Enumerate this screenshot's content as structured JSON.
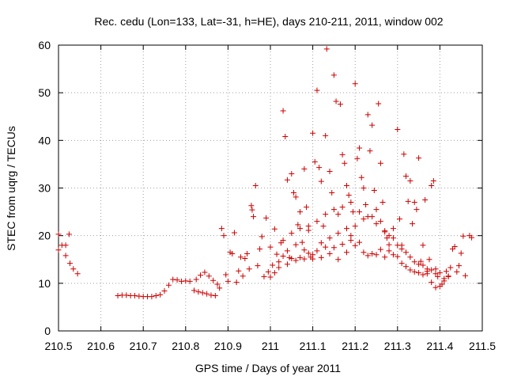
{
  "chart_data": {
    "type": "scatter",
    "title": "Rec. cedu (Lon=133, Lat=-31, h=HE), days 210-211, 2011, window 002",
    "xlabel": "GPS time / Days of year 2011",
    "ylabel": "STEC from uqrg / TECUs",
    "xlim": [
      210.5,
      211.5
    ],
    "ylim": [
      0,
      60
    ],
    "x_ticks": [
      "210.5",
      "210.6",
      "210.7",
      "210.8",
      "210.9",
      "211",
      "211.1",
      "211.2",
      "211.3",
      "211.4",
      "211.5"
    ],
    "y_ticks": [
      "0",
      "10",
      "20",
      "30",
      "40",
      "50",
      "60"
    ],
    "marker": "+",
    "color": "#cc0000",
    "points": [
      [
        210.5,
        20.3
      ],
      [
        210.5,
        17.0
      ],
      [
        210.508,
        18.0
      ],
      [
        210.517,
        18.0
      ],
      [
        210.517,
        15.8
      ],
      [
        210.525,
        20.3
      ],
      [
        210.527,
        14.2
      ],
      [
        210.535,
        13.0
      ],
      [
        210.545,
        12.0
      ],
      [
        210.64,
        7.4
      ],
      [
        210.65,
        7.5
      ],
      [
        210.66,
        7.5
      ],
      [
        210.67,
        7.4
      ],
      [
        210.68,
        7.4
      ],
      [
        210.69,
        7.3
      ],
      [
        210.7,
        7.2
      ],
      [
        210.71,
        7.2
      ],
      [
        210.72,
        7.2
      ],
      [
        210.73,
        7.4
      ],
      [
        210.74,
        7.6
      ],
      [
        210.75,
        8.4
      ],
      [
        210.76,
        9.6
      ],
      [
        210.77,
        10.8
      ],
      [
        210.78,
        10.7
      ],
      [
        210.79,
        10.4
      ],
      [
        210.8,
        10.5
      ],
      [
        210.81,
        10.4
      ],
      [
        210.82,
        8.5
      ],
      [
        210.825,
        10.8
      ],
      [
        210.83,
        8.2
      ],
      [
        210.835,
        11.7
      ],
      [
        210.84,
        8.0
      ],
      [
        210.845,
        12.3
      ],
      [
        210.85,
        7.8
      ],
      [
        210.855,
        11.5
      ],
      [
        210.86,
        7.5
      ],
      [
        210.865,
        10.6
      ],
      [
        210.87,
        7.4
      ],
      [
        210.875,
        9.8
      ],
      [
        210.88,
        9.0
      ],
      [
        210.885,
        21.5
      ],
      [
        210.89,
        20.0
      ],
      [
        210.895,
        11.8
      ],
      [
        210.9,
        10.4
      ],
      [
        210.905,
        16.5
      ],
      [
        210.91,
        16.2
      ],
      [
        210.915,
        20.6
      ],
      [
        210.92,
        10.2
      ],
      [
        210.925,
        12.6
      ],
      [
        210.93,
        15.5
      ],
      [
        210.935,
        11.5
      ],
      [
        210.94,
        15.2
      ],
      [
        210.945,
        16.2
      ],
      [
        210.95,
        13.0
      ],
      [
        210.955,
        26.3
      ],
      [
        210.957,
        25.4
      ],
      [
        210.96,
        24.0
      ],
      [
        210.965,
        30.5
      ],
      [
        210.97,
        13.7
      ],
      [
        210.975,
        17.2
      ],
      [
        210.98,
        19.8
      ],
      [
        210.985,
        11.4
      ],
      [
        210.99,
        23.7
      ],
      [
        210.995,
        12.4
      ],
      [
        211.0,
        17.6
      ],
      [
        211.005,
        13.8
      ],
      [
        211.01,
        21.4
      ],
      [
        211.015,
        16.1
      ],
      [
        211.02,
        13.3
      ],
      [
        211.025,
        18.5
      ],
      [
        211.03,
        46.2
      ],
      [
        211.035,
        40.8
      ],
      [
        211.04,
        31.7
      ],
      [
        211.045,
        15.4
      ],
      [
        211.05,
        33.0
      ],
      [
        211.055,
        29.0
      ],
      [
        211.06,
        28.1
      ],
      [
        211.065,
        22.3
      ],
      [
        211.07,
        25.0
      ],
      [
        211.075,
        18.6
      ],
      [
        211.08,
        34.0
      ],
      [
        211.085,
        26.0
      ],
      [
        211.09,
        21.1
      ],
      [
        211.095,
        15.5
      ],
      [
        211.1,
        41.5
      ],
      [
        211.105,
        35.5
      ],
      [
        211.11,
        50.5
      ],
      [
        211.115,
        34.3
      ],
      [
        211.12,
        31.4
      ],
      [
        211.125,
        22.0
      ],
      [
        211.13,
        41.0
      ],
      [
        211.133,
        59.2
      ],
      [
        211.14,
        33.5
      ],
      [
        211.145,
        29.0
      ],
      [
        211.15,
        53.7
      ],
      [
        211.155,
        48.2
      ],
      [
        211.16,
        24.5
      ],
      [
        211.165,
        47.6
      ],
      [
        211.17,
        37.0
      ],
      [
        211.175,
        35.2
      ],
      [
        211.18,
        30.5
      ],
      [
        211.185,
        28.5
      ],
      [
        211.19,
        19.0
      ],
      [
        211.195,
        25.0
      ],
      [
        211.2,
        51.9
      ],
      [
        211.205,
        36.2
      ],
      [
        211.21,
        38.4
      ],
      [
        211.215,
        32.2
      ],
      [
        211.22,
        30.0
      ],
      [
        211.225,
        26.5
      ],
      [
        211.23,
        45.4
      ],
      [
        211.235,
        37.8
      ],
      [
        211.24,
        43.2
      ],
      [
        211.245,
        29.5
      ],
      [
        211.25,
        25.5
      ],
      [
        211.255,
        47.7
      ],
      [
        211.26,
        35.2
      ],
      [
        211.265,
        27.0
      ],
      [
        211.27,
        20.8
      ],
      [
        211.275,
        19.5
      ],
      [
        211.28,
        18.1
      ],
      [
        211.29,
        21.5
      ],
      [
        211.3,
        42.3
      ],
      [
        211.305,
        23.5
      ],
      [
        211.31,
        18.0
      ],
      [
        211.315,
        37.1
      ],
      [
        211.32,
        32.5
      ],
      [
        211.325,
        27.2
      ],
      [
        211.33,
        31.5
      ],
      [
        211.335,
        22.5
      ],
      [
        211.34,
        27.0
      ],
      [
        211.345,
        25.5
      ],
      [
        211.35,
        36.3
      ],
      [
        211.355,
        14.6
      ],
      [
        211.36,
        18.0
      ],
      [
        211.365,
        27.5
      ],
      [
        211.37,
        12.5
      ],
      [
        211.375,
        15.0
      ],
      [
        211.38,
        30.5
      ],
      [
        211.385,
        31.5
      ],
      [
        211.39,
        13.0
      ],
      [
        211.395,
        11.4
      ],
      [
        211.4,
        9.4
      ],
      [
        211.405,
        9.8
      ],
      [
        211.41,
        10.5
      ],
      [
        211.415,
        12.5
      ],
      [
        211.42,
        11.4
      ],
      [
        211.425,
        13.3
      ],
      [
        211.43,
        17.2
      ],
      [
        211.435,
        17.7
      ],
      [
        211.44,
        12.4
      ],
      [
        211.445,
        13.7
      ],
      [
        211.45,
        16.3
      ],
      [
        211.455,
        19.9
      ],
      [
        211.46,
        11.6
      ],
      [
        211.47,
        20.0
      ],
      [
        211.475,
        19.6
      ],
      [
        211.0,
        11.3
      ],
      [
        211.01,
        12.2
      ],
      [
        211.02,
        14.5
      ],
      [
        211.03,
        15.7
      ],
      [
        211.04,
        16.8
      ],
      [
        211.05,
        15.2
      ],
      [
        211.06,
        18.1
      ],
      [
        211.07,
        15.4
      ],
      [
        211.08,
        17.0
      ],
      [
        211.09,
        16.3
      ],
      [
        211.1,
        15.1
      ],
      [
        211.11,
        16.8
      ],
      [
        211.12,
        15.4
      ],
      [
        211.13,
        17.6
      ],
      [
        211.14,
        16.2
      ],
      [
        211.15,
        17.5
      ],
      [
        211.16,
        15.0
      ],
      [
        211.17,
        18.2
      ],
      [
        211.18,
        16.5
      ],
      [
        211.19,
        20.0
      ],
      [
        211.2,
        17.9
      ],
      [
        211.21,
        18.6
      ],
      [
        211.22,
        16.5
      ],
      [
        211.23,
        15.8
      ],
      [
        211.24,
        16.2
      ],
      [
        211.25,
        16.0
      ],
      [
        211.26,
        17.1
      ],
      [
        211.27,
        15.5
      ],
      [
        211.28,
        16.8
      ],
      [
        211.29,
        16.0
      ],
      [
        211.3,
        15.6
      ],
      [
        211.31,
        14.2
      ],
      [
        211.32,
        13.5
      ],
      [
        211.33,
        12.8
      ],
      [
        211.34,
        12.4
      ],
      [
        211.35,
        12.2
      ],
      [
        211.36,
        11.8
      ],
      [
        211.37,
        12.0
      ],
      [
        211.38,
        10.2
      ],
      [
        211.39,
        9.1
      ],
      [
        211.03,
        19.0
      ],
      [
        211.05,
        20.5
      ],
      [
        211.07,
        21.5
      ],
      [
        211.09,
        22.0
      ],
      [
        211.11,
        23.0
      ],
      [
        211.13,
        24.5
      ],
      [
        211.15,
        25.5
      ],
      [
        211.17,
        26.0
      ],
      [
        211.19,
        27.0
      ],
      [
        211.21,
        25.0
      ],
      [
        211.23,
        24.0
      ],
      [
        211.25,
        22.5
      ],
      [
        211.27,
        21.0
      ],
      [
        211.29,
        19.5
      ],
      [
        211.31,
        17.2
      ],
      [
        211.33,
        15.5
      ],
      [
        211.35,
        14.0
      ],
      [
        211.37,
        13.0
      ],
      [
        211.39,
        12.0
      ],
      [
        211.41,
        11.0
      ],
      [
        211.04,
        14.0
      ],
      [
        211.06,
        14.8
      ],
      [
        211.08,
        15.1
      ],
      [
        211.1,
        16.0
      ],
      [
        211.12,
        18.5
      ],
      [
        211.14,
        19.5
      ],
      [
        211.16,
        20.5
      ],
      [
        211.18,
        21.5
      ],
      [
        211.2,
        22.0
      ],
      [
        211.22,
        23.5
      ],
      [
        211.24,
        24.0
      ],
      [
        211.26,
        23.0
      ],
      [
        211.28,
        20.0
      ],
      [
        211.3,
        18.0
      ],
      [
        211.32,
        16.5
      ],
      [
        211.34,
        14.5
      ],
      [
        211.36,
        13.8
      ],
      [
        211.38,
        12.8
      ],
      [
        211.4,
        12.2
      ],
      [
        211.42,
        11.5
      ]
    ]
  }
}
